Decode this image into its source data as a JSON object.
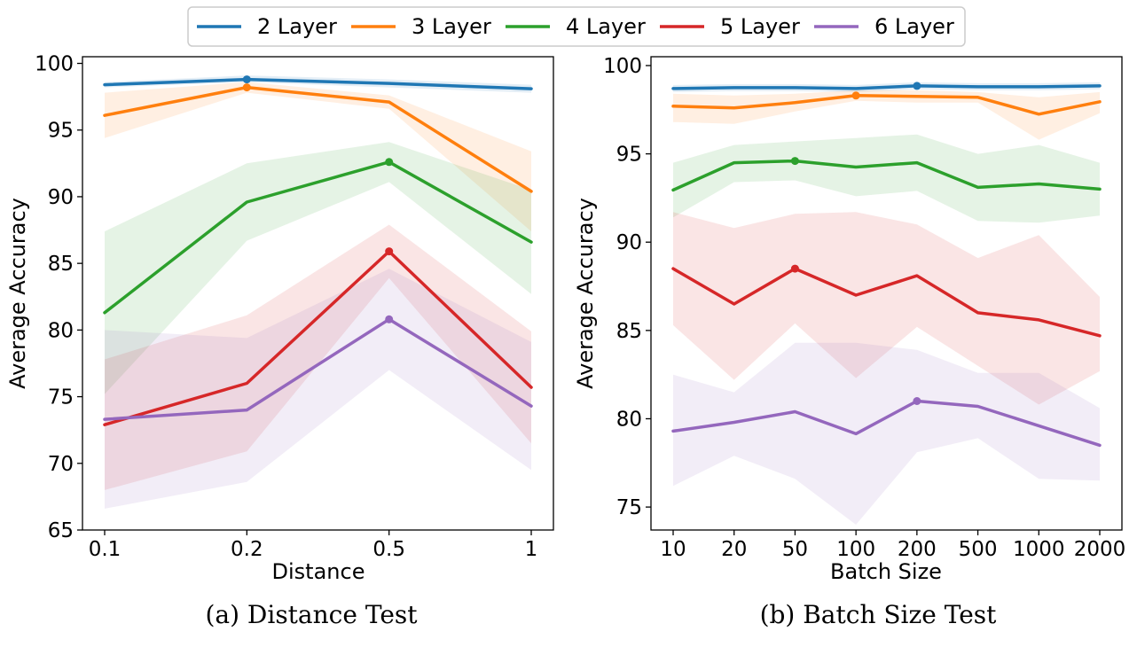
{
  "legend": {
    "placement": "top-center",
    "entries": [
      {
        "label": "2 Layer",
        "color": "#1f77b4"
      },
      {
        "label": "3 Layer",
        "color": "#ff7f0e"
      },
      {
        "label": "4 Layer",
        "color": "#2ca02c"
      },
      {
        "label": "5 Layer",
        "color": "#d62728"
      },
      {
        "label": "6 Layer",
        "color": "#9467bd"
      }
    ]
  },
  "chart_data": [
    {
      "type": "line",
      "caption": "(a) Distance Test",
      "xlabel": "Distance",
      "ylabel": "Average Accuracy",
      "categories": [
        "0.1",
        "0.2",
        "0.5",
        "1"
      ],
      "ylim": [
        65,
        100.5
      ],
      "yticks": [
        65,
        70,
        75,
        80,
        85,
        90,
        95,
        100
      ],
      "grid": false,
      "series": [
        {
          "name": "2 Layer",
          "color": "#1f77b4",
          "values": [
            98.4,
            98.8,
            98.5,
            98.1
          ],
          "lower": [
            98.2,
            98.6,
            98.2,
            97.8
          ],
          "upper": [
            98.6,
            99.1,
            98.8,
            98.4
          ],
          "best_index": 1
        },
        {
          "name": "3 Layer",
          "color": "#ff7f0e",
          "values": [
            96.1,
            98.2,
            97.1,
            90.4
          ],
          "lower": [
            94.4,
            97.8,
            96.6,
            87.4
          ],
          "upper": [
            97.8,
            98.6,
            97.6,
            93.4
          ],
          "best_index": 1
        },
        {
          "name": "4 Layer",
          "color": "#2ca02c",
          "values": [
            81.3,
            89.6,
            92.6,
            86.6
          ],
          "lower": [
            75.2,
            86.7,
            91.1,
            82.7
          ],
          "upper": [
            87.4,
            92.5,
            94.1,
            90.5
          ],
          "best_index": 2
        },
        {
          "name": "5 Layer",
          "color": "#d62728",
          "values": [
            72.9,
            76.0,
            85.9,
            75.7
          ],
          "lower": [
            68.0,
            70.9,
            83.9,
            71.5
          ],
          "upper": [
            77.8,
            81.1,
            87.9,
            79.9
          ],
          "best_index": 2
        },
        {
          "name": "6 Layer",
          "color": "#9467bd",
          "values": [
            73.3,
            74.0,
            80.8,
            74.3
          ],
          "lower": [
            66.6,
            68.6,
            77.0,
            69.5
          ],
          "upper": [
            80.0,
            79.4,
            84.6,
            79.1
          ],
          "best_index": 2
        }
      ]
    },
    {
      "type": "line",
      "caption": "(b) Batch Size Test",
      "xlabel": "Batch Size",
      "ylabel": "Average Accuracy",
      "categories": [
        "10",
        "20",
        "50",
        "100",
        "200",
        "500",
        "1000",
        "2000"
      ],
      "ylim": [
        73.7,
        100.5
      ],
      "yticks": [
        75,
        80,
        85,
        90,
        95,
        100
      ],
      "grid": false,
      "series": [
        {
          "name": "2 Layer",
          "color": "#1f77b4",
          "values": [
            98.7,
            98.75,
            98.75,
            98.7,
            98.85,
            98.8,
            98.8,
            98.85
          ],
          "lower": [
            98.5,
            98.55,
            98.55,
            98.5,
            98.65,
            98.6,
            98.6,
            98.65
          ],
          "upper": [
            98.9,
            98.95,
            98.95,
            98.9,
            99.05,
            99.0,
            99.0,
            99.05
          ],
          "best_index": 4
        },
        {
          "name": "3 Layer",
          "color": "#ff7f0e",
          "values": [
            97.7,
            97.6,
            97.9,
            98.3,
            98.25,
            98.2,
            97.25,
            97.95
          ],
          "lower": [
            96.8,
            96.7,
            97.4,
            98.0,
            97.9,
            97.9,
            95.8,
            97.3
          ],
          "upper": [
            98.4,
            98.3,
            98.4,
            98.6,
            98.6,
            98.5,
            98.2,
            98.5
          ],
          "best_index": 3
        },
        {
          "name": "4 Layer",
          "color": "#2ca02c",
          "values": [
            92.95,
            94.5,
            94.6,
            94.25,
            94.5,
            93.1,
            93.3,
            93.0
          ],
          "lower": [
            91.4,
            93.4,
            93.5,
            92.6,
            92.9,
            91.2,
            91.1,
            91.5
          ],
          "upper": [
            94.5,
            95.5,
            95.7,
            95.9,
            96.1,
            95.0,
            95.5,
            94.5
          ],
          "best_index": 2
        },
        {
          "name": "5 Layer",
          "color": "#d62728",
          "values": [
            88.5,
            86.5,
            88.5,
            87.0,
            88.1,
            86.0,
            85.6,
            84.7
          ],
          "lower": [
            85.3,
            82.2,
            85.4,
            82.3,
            85.2,
            83.0,
            80.8,
            82.7
          ],
          "upper": [
            91.7,
            90.8,
            91.6,
            91.7,
            91.0,
            89.1,
            90.4,
            86.9
          ],
          "best_index": 2
        },
        {
          "name": "6 Layer",
          "color": "#9467bd",
          "values": [
            79.3,
            79.8,
            80.4,
            79.15,
            81.0,
            80.7,
            79.6,
            78.5
          ],
          "lower": [
            76.2,
            77.9,
            76.6,
            74.0,
            78.1,
            78.9,
            76.6,
            76.5
          ],
          "upper": [
            82.5,
            81.5,
            84.3,
            84.3,
            83.9,
            82.6,
            82.6,
            80.6
          ],
          "best_index": 4
        }
      ]
    }
  ]
}
